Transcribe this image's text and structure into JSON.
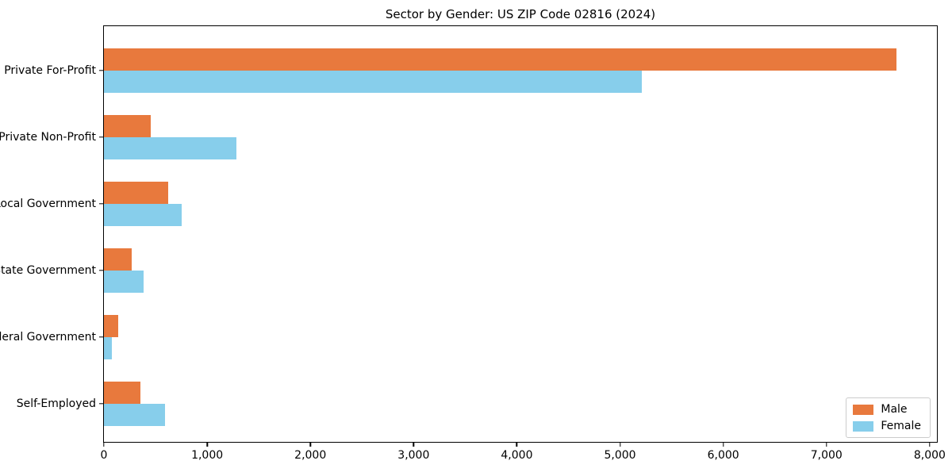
{
  "chart_data": {
    "type": "bar",
    "orientation": "horizontal",
    "title": "Sector by Gender: US ZIP Code 02816 (2024)",
    "categories": [
      "Private For-Profit",
      "Private Non-Profit",
      "Local Government",
      "State Government",
      "Federal Government",
      "Self-Employed"
    ],
    "series": [
      {
        "name": "Male",
        "color": "#e8793d",
        "values": [
          7680,
          455,
          620,
          270,
          135,
          350
        ]
      },
      {
        "name": "Female",
        "color": "#87ceeb",
        "values": [
          5210,
          1280,
          755,
          385,
          80,
          595
        ]
      }
    ],
    "xlabel": "",
    "ylabel": "",
    "xlim": [
      0,
      8070
    ],
    "xticks": [
      0,
      1000,
      2000,
      3000,
      4000,
      5000,
      6000,
      7000,
      8000
    ],
    "xtick_labels": [
      "0",
      "1,000",
      "2,000",
      "3,000",
      "4,000",
      "5,000",
      "6,000",
      "7,000",
      "8,000"
    ],
    "grid": false,
    "legend": {
      "position": "lower right",
      "items": [
        "Male",
        "Female"
      ]
    }
  }
}
